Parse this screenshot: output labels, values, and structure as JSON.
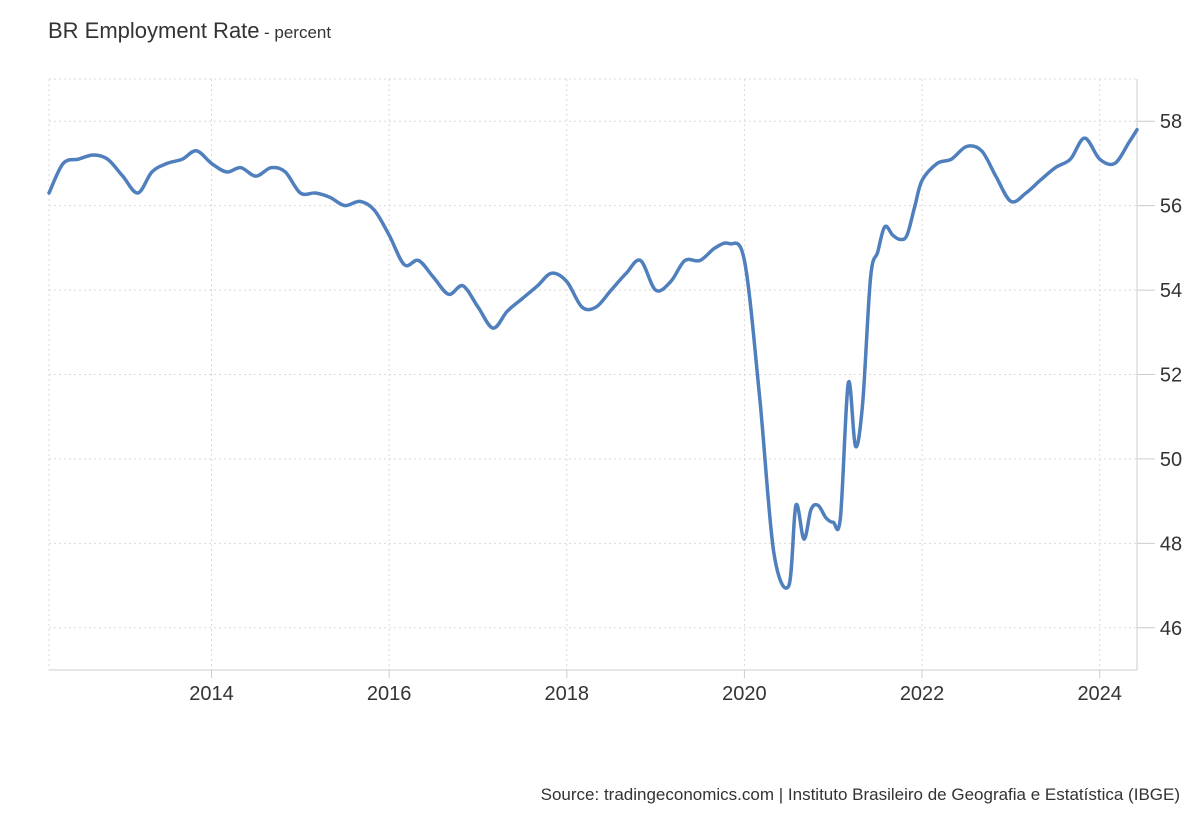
{
  "title": "BR Employment Rate",
  "subtitle": "- percent",
  "source": "Source: tradingeconomics.com | Instituto Brasileiro de Geografia e Estatística (IBGE)",
  "colors": {
    "line": "#4f7fbc",
    "grid": "#d9d9d9",
    "axis": "#cccccc",
    "text": "#333333"
  },
  "chart_data": {
    "type": "line",
    "title": "BR Employment Rate",
    "subtitle": "- percent",
    "xlim": [
      2012.17,
      2024.42
    ],
    "ylim": [
      45,
      59
    ],
    "x_ticks": [
      2014,
      2016,
      2018,
      2020,
      2022,
      2024
    ],
    "x_tick_labels": [
      "2014",
      "2016",
      "2018",
      "2020",
      "2022",
      "2024"
    ],
    "y_ticks": [
      46,
      48,
      50,
      52,
      54,
      56,
      58
    ],
    "y_tick_labels": [
      "46",
      "48",
      "50",
      "52",
      "54",
      "56",
      "58"
    ],
    "y_axis_position": "right",
    "grid": true,
    "series": [
      {
        "x": [
          2012.17,
          2012.33,
          2012.5,
          2012.67,
          2012.83,
          2013.0,
          2013.17,
          2013.33,
          2013.5,
          2013.67,
          2013.83,
          2014.0,
          2014.17,
          2014.33,
          2014.5,
          2014.67,
          2014.83,
          2015.0,
          2015.17,
          2015.33,
          2015.5,
          2015.67,
          2015.83,
          2016.0,
          2016.17,
          2016.33,
          2016.5,
          2016.67,
          2016.83,
          2017.0,
          2017.17,
          2017.33,
          2017.5,
          2017.67,
          2017.83,
          2018.0,
          2018.17,
          2018.33,
          2018.5,
          2018.67,
          2018.83,
          2019.0,
          2019.17,
          2019.33,
          2019.5,
          2019.67,
          2019.83,
          2020.0,
          2020.17,
          2020.33,
          2020.5,
          2020.58,
          2020.67,
          2020.75,
          2020.83,
          2020.92,
          2021.0,
          2021.08,
          2021.17,
          2021.25,
          2021.33,
          2021.42,
          2021.5,
          2021.58,
          2021.67,
          2021.75,
          2021.83,
          2021.92,
          2022.0,
          2022.17,
          2022.33,
          2022.5,
          2022.67,
          2022.83,
          2023.0,
          2023.17,
          2023.33,
          2023.5,
          2023.67,
          2023.83,
          2024.0,
          2024.17,
          2024.33,
          2024.42
        ],
        "values": [
          56.3,
          57.0,
          57.1,
          57.2,
          57.1,
          56.7,
          56.3,
          56.8,
          57.0,
          57.1,
          57.3,
          57.0,
          56.8,
          56.9,
          56.7,
          56.9,
          56.8,
          56.3,
          56.3,
          56.2,
          56.0,
          56.1,
          55.9,
          55.3,
          54.6,
          54.7,
          54.3,
          53.9,
          54.1,
          53.6,
          53.1,
          53.5,
          53.8,
          54.1,
          54.4,
          54.2,
          53.6,
          53.6,
          54.0,
          54.4,
          54.7,
          54.0,
          54.2,
          54.7,
          54.7,
          55.0,
          55.1,
          54.7,
          51.5,
          47.8,
          47.0,
          48.9,
          48.1,
          48.8,
          48.9,
          48.6,
          48.5,
          48.6,
          51.8,
          50.3,
          51.3,
          54.3,
          54.9,
          55.5,
          55.3,
          55.2,
          55.3,
          56.0,
          56.6,
          57.0,
          57.1,
          57.4,
          57.3,
          56.7,
          56.1,
          56.3,
          56.6,
          56.9,
          57.1,
          57.6,
          57.1,
          57.0,
          57.5,
          57.8
        ]
      }
    ]
  }
}
